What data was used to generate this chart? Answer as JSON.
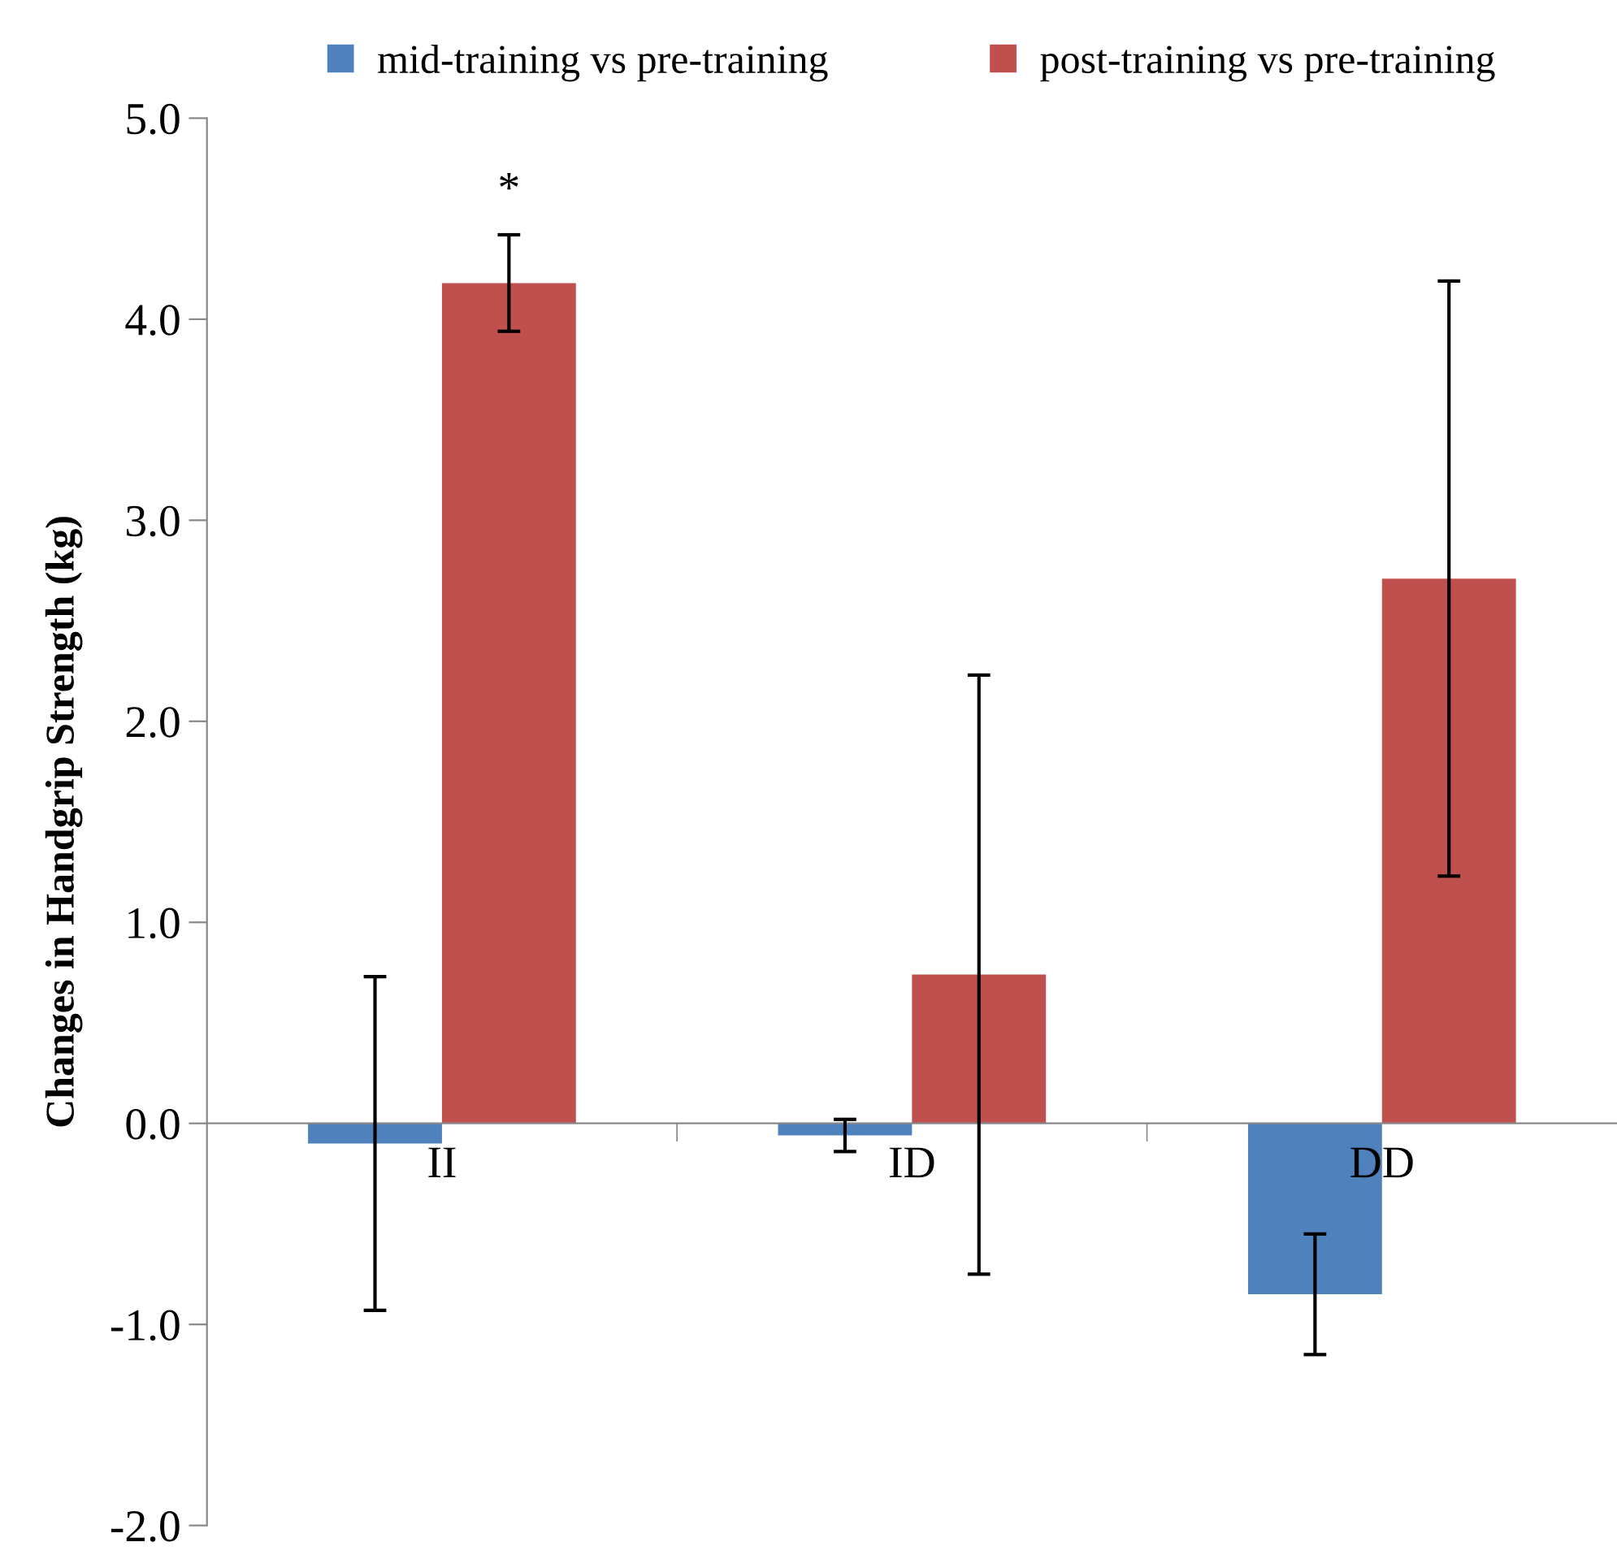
{
  "chart_data": {
    "type": "bar",
    "ylabel": "Changes in Handgrip Strength (kg)",
    "categories": [
      "II",
      "ID",
      "DD"
    ],
    "series": [
      {
        "name": "mid-training vs pre-training",
        "color": "#4f81bd",
        "values": [
          -0.1,
          -0.06,
          -0.85
        ],
        "errors": [
          0.83,
          0.08,
          0.3
        ]
      },
      {
        "name": "post-training vs pre-training",
        "color": "#c0504d",
        "values": [
          4.18,
          0.74,
          2.71
        ],
        "errors": [
          0.24,
          1.49,
          1.48
        ]
      }
    ],
    "ylim": [
      -2,
      5
    ],
    "yticks": [
      {
        "value": -2,
        "label": "-2.0"
      },
      {
        "value": -1,
        "label": "-1.0"
      },
      {
        "value": 0,
        "label": "0.0"
      },
      {
        "value": 1,
        "label": "1.0"
      },
      {
        "value": 2,
        "label": "2.0"
      },
      {
        "value": 3,
        "label": "3.0"
      },
      {
        "value": 4,
        "label": "4.0"
      },
      {
        "value": 5,
        "label": "5.0"
      }
    ],
    "annotations": [
      "*"
    ],
    "legend": "top",
    "grid": false
  }
}
